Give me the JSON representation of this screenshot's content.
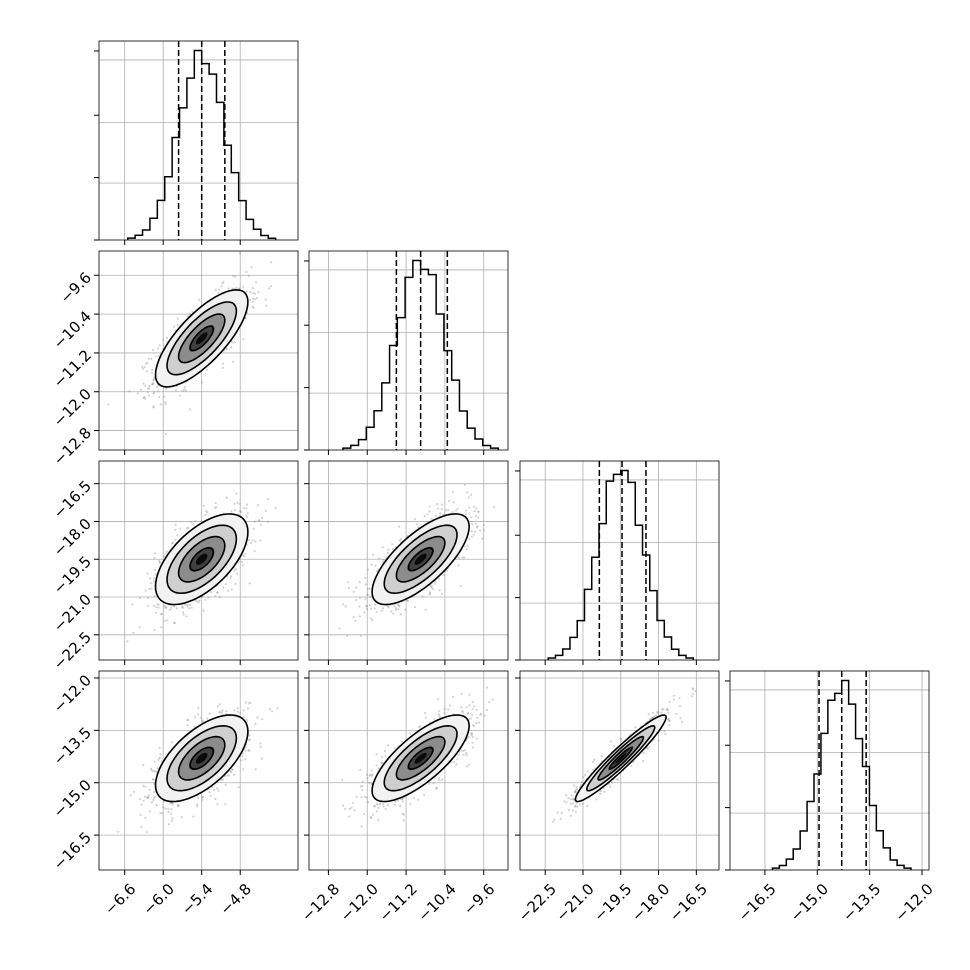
{
  "chart_data": {
    "type": "scatter",
    "kind": "corner-plot",
    "parameters": [
      {
        "range": [
          -7.0,
          -3.9
        ],
        "ticks": [
          -6.6,
          -6.0,
          -5.4,
          -4.8
        ],
        "tick_labels": [
          "−6.6",
          "−6.0",
          "−5.4",
          "−4.8"
        ],
        "mean": -5.4,
        "sigma": 0.36,
        "quantiles": [
          -5.76,
          -5.4,
          -5.04
        ]
      },
      {
        "range": [
          -13.2,
          -9.1
        ],
        "ticks": [
          -12.8,
          -12.0,
          -11.2,
          -10.4,
          -9.6
        ],
        "tick_labels": [
          "−12.8",
          "−12.0",
          "−11.2",
          "−10.4",
          "−9.6"
        ],
        "mean": -10.9,
        "sigma": 0.5,
        "quantiles": [
          -11.4,
          -10.9,
          -10.35
        ]
      },
      {
        "range": [
          -23.5,
          -15.6
        ],
        "ticks": [
          -22.5,
          -21.0,
          -19.5,
          -18.0,
          -16.5
        ],
        "tick_labels": [
          "−22.5",
          "−21.0",
          "−19.5",
          "−18.0",
          "−16.5"
        ],
        "mean": -19.5,
        "sigma": 0.9,
        "quantiles": [
          -20.35,
          -19.45,
          -18.5
        ]
      },
      {
        "range": [
          -17.5,
          -11.8
        ],
        "ticks": [
          -16.5,
          -15.0,
          -13.5,
          -12.0
        ],
        "tick_labels": [
          "−16.5",
          "−15.0",
          "−13.5",
          "−12.0"
        ],
        "mean": -14.3,
        "sigma": 0.62,
        "quantiles": [
          -14.95,
          -14.3,
          -13.6
        ]
      }
    ],
    "correlations": [
      [
        1.0,
        0.75,
        0.6,
        0.62
      ],
      [
        0.75,
        1.0,
        0.72,
        0.75
      ],
      [
        0.6,
        0.72,
        1.0,
        0.95
      ],
      [
        0.62,
        0.75,
        0.95,
        1.0
      ]
    ],
    "histogram_bins": 20,
    "contour_levels_sigma": [
      0.5,
      1.0,
      1.5,
      2.0
    ],
    "grid": true,
    "colors": {
      "points": "#808080",
      "lines": "#000000",
      "grid": "#b0b0b0"
    }
  }
}
